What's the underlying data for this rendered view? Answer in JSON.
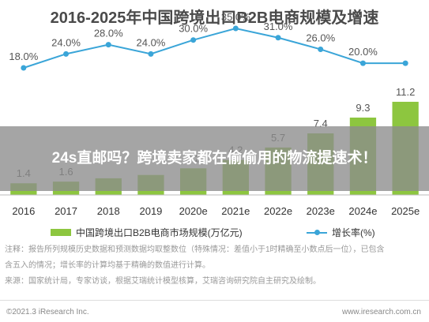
{
  "chart_data": {
    "type": "bar+line",
    "title": "2016-2025年中国跨境出口B2B电商规模及增速",
    "categories": [
      "2016",
      "2017",
      "2018",
      "2019",
      "2020e",
      "2021e",
      "2022e",
      "2023e",
      "2024e",
      "2025e"
    ],
    "series": [
      {
        "name": "中国跨境出口B2B电商市场规模(万亿元)",
        "type": "bar",
        "values": [
          1.4,
          1.6,
          2.0,
          2.4,
          3.2,
          4.2,
          5.7,
          7.4,
          9.3,
          11.2
        ],
        "labels": [
          "1.4",
          "1.6",
          "",
          "",
          "3.2",
          "4.2",
          "5.7",
          "7.4",
          "9.3",
          "11.2"
        ]
      },
      {
        "name": "增长率(%)",
        "type": "line",
        "values": [
          18.0,
          24.0,
          28.0,
          24.0,
          30.0,
          35.0,
          31.0,
          26.0,
          20.0,
          20.0
        ],
        "labels": [
          "18.0%",
          "24.0%",
          "28.0%",
          "24.0%",
          "30.0%",
          "35.0%",
          "31.0%",
          "26.0%",
          "20.0%",
          ""
        ]
      }
    ],
    "ylim": [
      0,
      13
    ],
    "y2lim": [
      0,
      40
    ],
    "grid": false,
    "legend": "bottom",
    "colors": {
      "bar": "#8dc63f",
      "line": "#3aa5d8"
    }
  },
  "overlay": {
    "banner_text": "24s直邮吗？跨境卖家都在偷偷用的物流提速术！"
  },
  "notes": [
    "注释：报告所列规模历史数据和预测数据均取整数位（特殊情况：差值小于1时精确至小数点后一位），已包含",
    "含五入的情况；增长率的计算均基于精确的数值进行计算。",
    "来源：国家统计局，专家访谈，根据艾瑞统计模型核算，艾瑞咨询研究院自主研究及绘制。"
  ],
  "footer": {
    "left": "©2021.3 iResearch Inc.",
    "right": "www.iresearch.com.cn"
  }
}
